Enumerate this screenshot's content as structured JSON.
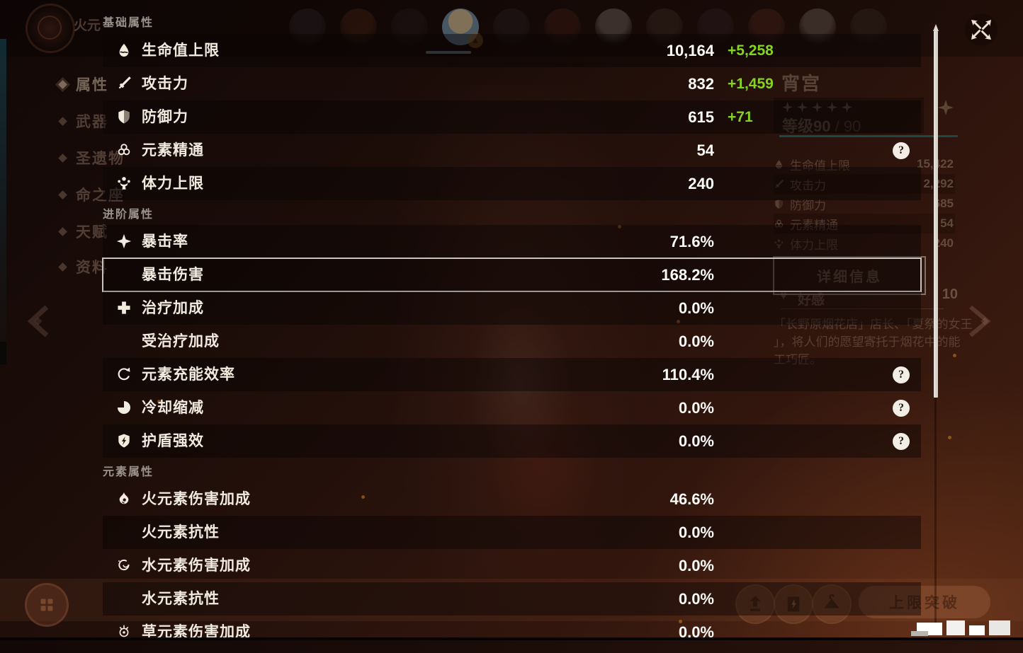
{
  "panel": {
    "help_glyph": "?",
    "sections": [
      {
        "title": "基础属性",
        "rows": [
          {
            "icon": "hp-icon",
            "label": "生命值上限",
            "value": "10,164",
            "bonus": "+5,258",
            "shaded": true
          },
          {
            "icon": "atk-icon",
            "label": "攻击力",
            "value": "832",
            "bonus": "+1,459",
            "shaded": false
          },
          {
            "icon": "def-icon",
            "label": "防御力",
            "value": "615",
            "bonus": "+71",
            "shaded": true
          },
          {
            "icon": "elemental-mastery-icon",
            "label": "元素精通",
            "value": "54",
            "help": true,
            "shaded": false
          },
          {
            "icon": "stamina-icon",
            "label": "体力上限",
            "value": "240",
            "shaded": true
          }
        ]
      },
      {
        "title": "进阶属性",
        "rows": [
          {
            "icon": "crit-rate-icon",
            "label": "暴击率",
            "value": "71.6%",
            "shaded": true
          },
          {
            "icon": null,
            "label": "暴击伤害",
            "value": "168.2%",
            "shaded": true,
            "highlighted": true
          },
          {
            "icon": "healing-bonus-icon",
            "label": "治疗加成",
            "value": "0.0%",
            "shaded": true
          },
          {
            "icon": null,
            "label": "受治疗加成",
            "value": "0.0%",
            "shaded": false
          },
          {
            "icon": "energy-recharge-icon",
            "label": "元素充能效率",
            "value": "110.4%",
            "help": true,
            "shaded": true
          },
          {
            "icon": "cd-reduction-icon",
            "label": "冷却缩减",
            "value": "0.0%",
            "help": true,
            "shaded": false
          },
          {
            "icon": "shield-strength-icon",
            "label": "护盾强效",
            "value": "0.0%",
            "help": true,
            "shaded": true
          }
        ]
      },
      {
        "title": "元素属性",
        "rows": [
          {
            "icon": "pyro-icon",
            "label": "火元素伤害加成",
            "value": "46.6%",
            "shaded": false
          },
          {
            "icon": null,
            "label": "火元素抗性",
            "value": "0.0%",
            "shaded": true
          },
          {
            "icon": "hydro-icon",
            "label": "水元素伤害加成",
            "value": "0.0%",
            "shaded": false
          },
          {
            "icon": null,
            "label": "水元素抗性",
            "value": "0.0%",
            "shaded": true
          },
          {
            "icon": "dendro-icon",
            "label": "草元素伤害加成",
            "value": "0.0%",
            "shaded": false
          }
        ]
      }
    ]
  },
  "background": {
    "element_badge_label": "火元",
    "sidebar": {
      "items": [
        {
          "label": "属性",
          "active": true
        },
        {
          "label": "武器",
          "active": false
        },
        {
          "label": "圣遗物",
          "active": false
        },
        {
          "label": "命之座",
          "active": false
        },
        {
          "label": "天赋",
          "active": false
        },
        {
          "label": "资料",
          "active": false
        }
      ]
    },
    "top_bar": {
      "avatar_count": 12,
      "selected_index": 3
    },
    "character": {
      "name": "宵宫",
      "stars": 5,
      "level": "等级90",
      "level_max": " / 90"
    },
    "overview_stats": [
      {
        "icon": "hp-icon",
        "label": "生命值上限",
        "value": "15,422"
      },
      {
        "icon": "atk-icon",
        "label": "攻击力",
        "value": "2,292"
      },
      {
        "icon": "def-icon",
        "label": "防御力",
        "value": "685"
      },
      {
        "icon": "elemental-mastery-icon",
        "label": "元素精通",
        "value": "54"
      },
      {
        "icon": "stamina-icon",
        "label": "体力上限",
        "value": "240"
      }
    ],
    "detail_info_button": "详细信息",
    "friendship": {
      "label": "好感",
      "value": "10"
    },
    "description_lines": [
      "「长野原烟花店」店长、「夏祭的女王",
      "」，将人们的愿望寄托于烟花中的能",
      "工巧匠。"
    ],
    "breakthrough_button": "上限突破"
  }
}
